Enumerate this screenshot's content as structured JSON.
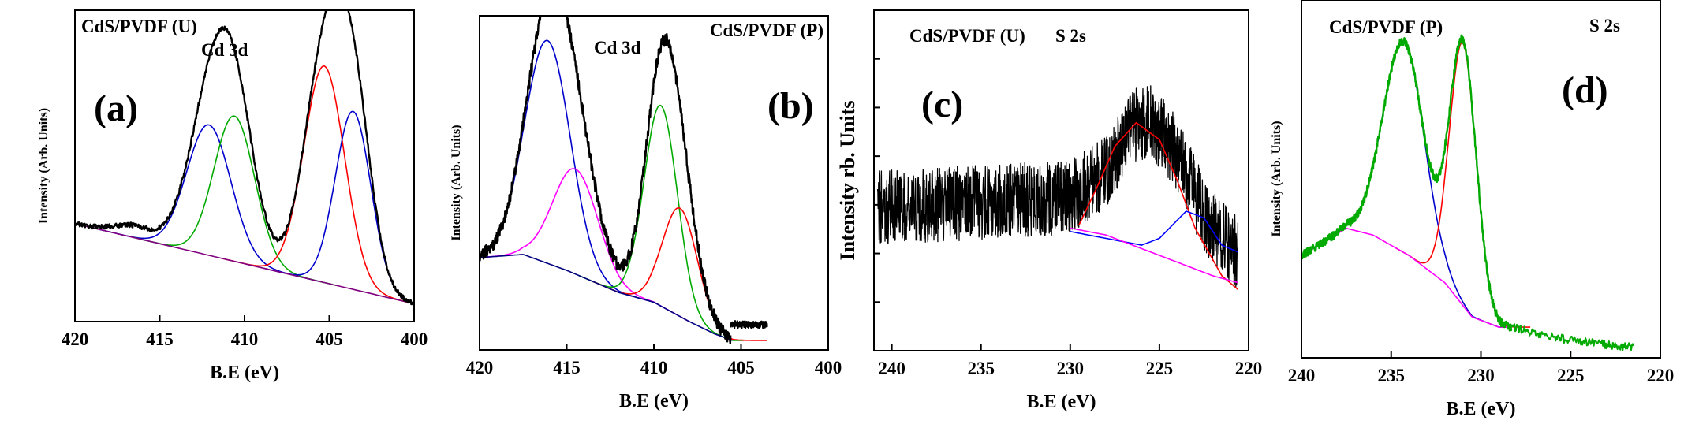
{
  "chart_data": [
    {
      "id": "a",
      "type": "line",
      "panel_label": "(a)",
      "sample_label": "CdS/PVDF (U)",
      "peak_label": "Cd 3d",
      "xlabel": "B.E (eV)",
      "ylabel": "Intensity (Arb. Units)",
      "xlim": [
        420,
        400
      ],
      "ylim": [
        0,
        1.05
      ],
      "xticks": [
        420,
        415,
        410,
        405,
        400
      ],
      "show_yticks": false,
      "series": [
        {
          "kind": "peak",
          "color": "#0000cc",
          "center": 412.1,
          "height": 0.44,
          "width": 1.3,
          "on_baseline": true
        },
        {
          "kind": "peak",
          "color": "#00aa00",
          "center": 410.6,
          "height": 0.49,
          "width": 1.2,
          "on_baseline": true
        },
        {
          "kind": "peak",
          "color": "#ff0000",
          "center": 405.3,
          "height": 0.73,
          "width": 1.2,
          "on_baseline": true
        },
        {
          "kind": "peak",
          "color": "#0000cc",
          "center": 403.6,
          "height": 0.6,
          "width": 1.05,
          "on_baseline": true
        },
        {
          "kind": "baseline",
          "color": "#800080",
          "points": [
            [
              420,
              0.33
            ],
            [
              400,
              0.06
            ]
          ]
        },
        {
          "kind": "envelope",
          "color": "#000000",
          "noise": 0.008,
          "extra": [
            [
              416.5,
              0.04,
              1.2
            ]
          ]
        }
      ]
    },
    {
      "id": "b",
      "type": "line",
      "panel_label": "(b)",
      "sample_label": "CdS/PVDF (P)",
      "peak_label": "Cd 3d",
      "xlabel": "B.E (eV)",
      "ylabel": "Intensity (Arb. Units)",
      "xlim": [
        420,
        400
      ],
      "ylim": [
        0,
        1.05
      ],
      "xticks": [
        420,
        415,
        410,
        405,
        400
      ],
      "show_yticks": false,
      "series": [
        {
          "kind": "peak",
          "color": "#0000cc",
          "center": 416.1,
          "height": 0.7,
          "width": 1.3,
          "on_baseline": true
        },
        {
          "kind": "peak",
          "color": "#ff00ff",
          "center": 414.5,
          "height": 0.33,
          "width": 1.3,
          "on_baseline": true
        },
        {
          "kind": "peak",
          "color": "#00aa00",
          "center": 409.6,
          "height": 0.63,
          "width": 0.95,
          "on_baseline": true
        },
        {
          "kind": "peak",
          "color": "#ff0000",
          "center": 408.5,
          "height": 0.34,
          "width": 1.0,
          "on_baseline": true
        },
        {
          "kind": "baseline",
          "color": "#000080",
          "points": [
            [
              420,
              0.29
            ],
            [
              417.5,
              0.3
            ],
            [
              415,
              0.25
            ],
            [
              412,
              0.18
            ],
            [
              410,
              0.15
            ],
            [
              408,
              0.09
            ],
            [
              406.5,
              0.05
            ],
            [
              405.5,
              0.03
            ]
          ]
        },
        {
          "kind": "envelope",
          "color": "#000000",
          "noise": 0.02,
          "x_end": 405.6
        },
        {
          "kind": "tail",
          "color": "#000000",
          "noise": 0.012,
          "points": [
            [
              405.6,
              0.08
            ],
            [
              403.5,
              0.08
            ]
          ]
        }
      ]
    },
    {
      "id": "c",
      "type": "line",
      "panel_label": "(c)",
      "sample_label": "CdS/PVDF (U)",
      "peak_label": "S 2s",
      "xlabel": "B.E (eV)",
      "ylabel": "Intensity rb. Units",
      "xlim": [
        241,
        220
      ],
      "ylim": [
        0,
        1.0
      ],
      "xticks": [
        240,
        235,
        230,
        225,
        220
      ],
      "show_yticks": true,
      "series": [
        {
          "kind": "raw",
          "color": "#000000",
          "noise": 0.11,
          "x_start": 240.8,
          "x_end": 220.6,
          "points": [
            [
              240.8,
              0.42
            ],
            [
              230,
              0.45
            ],
            [
              228,
              0.52
            ],
            [
              226.5,
              0.66
            ],
            [
              225.5,
              0.68
            ],
            [
              224,
              0.58
            ],
            [
              222.5,
              0.4
            ],
            [
              220.6,
              0.28
            ]
          ]
        },
        {
          "kind": "curve",
          "color": "#ff0000",
          "points": [
            [
              229.5,
              0.37
            ],
            [
              228.5,
              0.48
            ],
            [
              227.5,
              0.6
            ],
            [
              226.3,
              0.67
            ],
            [
              225,
              0.62
            ],
            [
              224,
              0.5
            ],
            [
              223,
              0.36
            ],
            [
              221.5,
              0.22
            ],
            [
              220.6,
              0.18
            ]
          ]
        },
        {
          "kind": "curve",
          "color": "#0000ff",
          "points": [
            [
              230,
              0.35
            ],
            [
              228,
              0.33
            ],
            [
              226,
              0.31
            ],
            [
              225,
              0.33
            ],
            [
              223.5,
              0.41
            ],
            [
              222.5,
              0.39
            ],
            [
              221.5,
              0.31
            ],
            [
              220.6,
              0.29
            ]
          ]
        },
        {
          "kind": "curve",
          "color": "#ff00ff",
          "points": [
            [
              230,
              0.36
            ],
            [
              228,
              0.34
            ],
            [
              226,
              0.3
            ],
            [
              224,
              0.26
            ],
            [
              222,
              0.22
            ],
            [
              220.6,
              0.2
            ]
          ]
        }
      ]
    },
    {
      "id": "d",
      "type": "line",
      "panel_label": "(d)",
      "sample_label": "CdS/PVDF (P)",
      "peak_label": "S 2s",
      "xlabel": "B.E (eV)",
      "ylabel": "Intensity (Arb. Units)",
      "xlim": [
        240,
        220
      ],
      "ylim": [
        0,
        1.05
      ],
      "xticks": [
        240,
        235,
        230,
        225,
        220
      ],
      "show_yticks": false,
      "series": [
        {
          "kind": "peak",
          "color": "#0000cc",
          "center": 234.3,
          "height": 0.62,
          "width": 1.15,
          "on_baseline": true
        },
        {
          "kind": "peak",
          "color": "#ff0000",
          "center": 231.0,
          "height": 0.77,
          "width": 0.75,
          "on_baseline": true
        },
        {
          "kind": "baseline",
          "color": "#ff00ff",
          "points": [
            [
              240,
              0.3
            ],
            [
              237.5,
              0.38
            ],
            [
              236,
              0.36
            ],
            [
              234,
              0.3
            ],
            [
              232,
              0.22
            ],
            [
              230.5,
              0.12
            ],
            [
              229,
              0.09
            ],
            [
              228.3,
              0.09
            ]
          ]
        },
        {
          "kind": "envelope",
          "color": "#00aa00",
          "noise": 0.012,
          "x_end": 228.3
        },
        {
          "kind": "tail",
          "color": "#00aa00",
          "noise": 0.012,
          "points": [
            [
              228.3,
              0.09
            ],
            [
              226,
              0.06
            ],
            [
              224,
              0.045
            ],
            [
              221.5,
              0.03
            ]
          ]
        }
      ]
    }
  ]
}
